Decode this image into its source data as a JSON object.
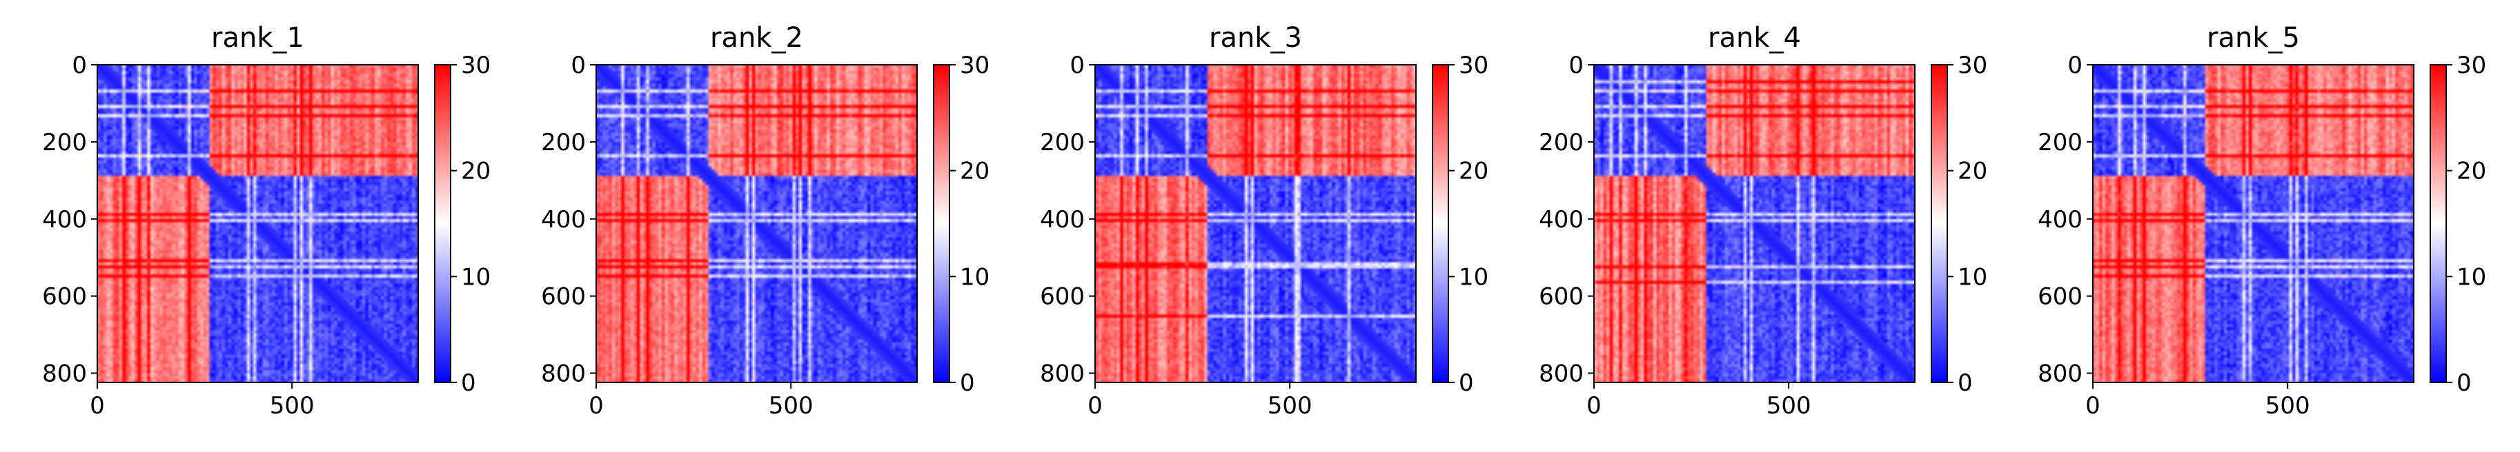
{
  "chart_data": [
    {
      "type": "heatmap",
      "title": "rank_1",
      "xlim": [
        0,
        824
      ],
      "ylim": [
        824,
        0
      ],
      "xticks": [
        0,
        500
      ],
      "yticks": [
        0,
        200,
        400,
        600,
        800
      ],
      "colorbar": {
        "range": [
          0,
          30
        ],
        "ticks": [
          0,
          10,
          20,
          30
        ],
        "colormap": "bwr"
      },
      "domains": [
        288,
        536
      ],
      "lines": {
        "rows": [
          60,
          100,
          130,
          230,
          380,
          400,
          500,
          520,
          540
        ],
        "cols": [
          60,
          100,
          130,
          230,
          380,
          400,
          500,
          520,
          540
        ]
      }
    },
    {
      "type": "heatmap",
      "title": "rank_2",
      "xlim": [
        0,
        824
      ],
      "ylim": [
        824,
        0
      ],
      "xticks": [
        0,
        500
      ],
      "yticks": [
        0,
        200,
        400,
        600,
        800
      ],
      "colorbar": {
        "range": [
          0,
          30
        ],
        "ticks": [
          0,
          10,
          20,
          30
        ],
        "colormap": "bwr"
      },
      "domains": [
        288,
        536
      ],
      "lines": {
        "rows": [
          60,
          100,
          130,
          230,
          380,
          400,
          500,
          520,
          540
        ],
        "cols": [
          60,
          100,
          130,
          230,
          380,
          400,
          500,
          520,
          540
        ]
      }
    },
    {
      "type": "heatmap",
      "title": "rank_3",
      "xlim": [
        0,
        824
      ],
      "ylim": [
        824,
        0
      ],
      "xticks": [
        0,
        500
      ],
      "yticks": [
        0,
        200,
        400,
        600,
        800
      ],
      "colorbar": {
        "range": [
          0,
          30
        ],
        "ticks": [
          0,
          10,
          20,
          30
        ],
        "colormap": "bwr"
      },
      "domains": [
        288,
        536
      ],
      "lines": {
        "rows": [
          60,
          100,
          130,
          230,
          380,
          400,
          510,
          520,
          650
        ],
        "cols": [
          60,
          100,
          130,
          230,
          380,
          400,
          510,
          520,
          650
        ]
      }
    },
    {
      "type": "heatmap",
      "title": "rank_4",
      "xlim": [
        0,
        824
      ],
      "ylim": [
        824,
        0
      ],
      "xticks": [
        0,
        500
      ],
      "yticks": [
        0,
        200,
        400,
        600,
        800
      ],
      "colorbar": {
        "range": [
          0,
          30
        ],
        "ticks": [
          0,
          10,
          20,
          30
        ],
        "colormap": "bwr"
      },
      "domains": [
        288,
        536
      ],
      "lines": {
        "rows": [
          40,
          60,
          100,
          130,
          230,
          380,
          400,
          520,
          560
        ],
        "cols": [
          40,
          60,
          100,
          130,
          230,
          380,
          400,
          520,
          560
        ]
      }
    },
    {
      "type": "heatmap",
      "title": "rank_5",
      "xlim": [
        0,
        824
      ],
      "ylim": [
        824,
        0
      ],
      "xticks": [
        0,
        500
      ],
      "yticks": [
        0,
        200,
        400,
        600,
        800
      ],
      "colorbar": {
        "range": [
          0,
          30
        ],
        "ticks": [
          0,
          10,
          20,
          30
        ],
        "colormap": "bwr"
      },
      "domains": [
        288,
        536
      ],
      "lines": {
        "rows": [
          60,
          100,
          130,
          230,
          380,
          400,
          500,
          520,
          540
        ],
        "cols": [
          60,
          100,
          130,
          230,
          380,
          400,
          500,
          520,
          540
        ]
      }
    }
  ]
}
